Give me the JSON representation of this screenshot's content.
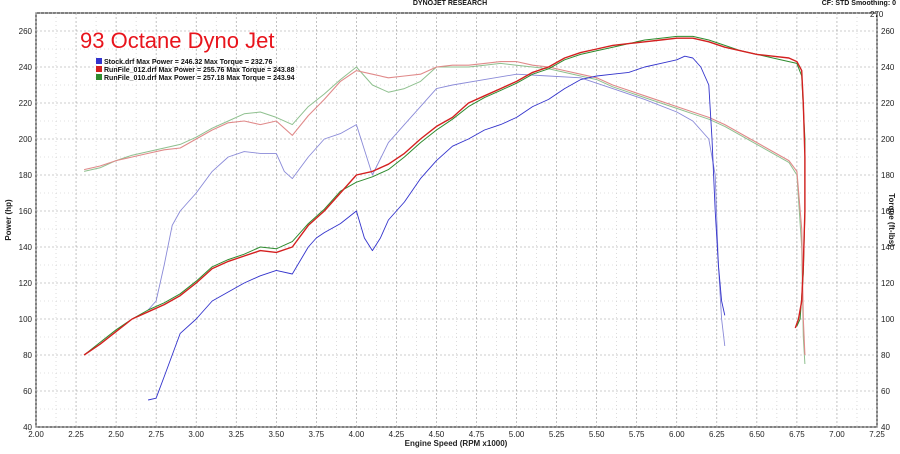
{
  "header": {
    "title": "DYNOJET RESEARCH",
    "right": "CF: STD   Smoothing: 0"
  },
  "overlay_title": "93 Octane Dyno Jet",
  "chart_data": {
    "type": "line",
    "xlabel": "Engine Speed (RPM x1000)",
    "ylabel_left": "Power (hp)",
    "ylabel_right": "Torque (ft-lbs)",
    "xlim": [
      2.0,
      7.25
    ],
    "ylim_left": [
      40,
      270
    ],
    "ylim_right": [
      40,
      270
    ],
    "x_ticks": [
      "2.00",
      "2.25",
      "2.50",
      "2.75",
      "3.00",
      "3.25",
      "3.50",
      "3.75",
      "4.00",
      "4.25",
      "4.50",
      "4.75",
      "5.00",
      "5.25",
      "5.50",
      "5.75",
      "6.00",
      "6.25",
      "6.50",
      "6.75",
      "7.00",
      "7.25"
    ],
    "y_ticks_left": [
      "40",
      "60",
      "80",
      "100",
      "120",
      "140",
      "160",
      "180",
      "200",
      "220",
      "240",
      "260"
    ],
    "y_ticks_right": [
      "40",
      "60",
      "80",
      "100",
      "120",
      "140",
      "160",
      "180",
      "200",
      "220",
      "240",
      "260"
    ],
    "y_ticks_top_right": "270",
    "grid": true,
    "legend_position": "top-left",
    "legend": [
      {
        "label": "Stock.drf Max Power = 246.32 Max Torque = 232.76",
        "color": "#3333cc"
      },
      {
        "label": "RunFile_012.drf Max Power = 255.76 Max Torque = 243.88",
        "color": "#d42020"
      },
      {
        "label": "RunFile_010.drf Max Power = 257.18 Max Torque = 243.94",
        "color": "#2e8b2e"
      }
    ],
    "series": [
      {
        "id": "stock_power",
        "kind": "power",
        "color": "#3333cc",
        "width": 0.9,
        "x": [
          2.7,
          2.75,
          2.8,
          2.85,
          2.9,
          3.0,
          3.1,
          3.2,
          3.3,
          3.4,
          3.5,
          3.6,
          3.7,
          3.75,
          3.8,
          3.9,
          4.0,
          4.05,
          4.1,
          4.15,
          4.2,
          4.3,
          4.4,
          4.5,
          4.6,
          4.7,
          4.8,
          4.9,
          5.0,
          5.1,
          5.2,
          5.3,
          5.4,
          5.5,
          5.6,
          5.7,
          5.8,
          5.9,
          6.0,
          6.05,
          6.1,
          6.15,
          6.2,
          6.22,
          6.24,
          6.26,
          6.28,
          6.3
        ],
        "y": [
          55,
          56,
          68,
          80,
          92,
          100,
          110,
          115,
          120,
          124,
          127,
          125,
          140,
          145,
          148,
          153,
          160,
          145,
          138,
          145,
          155,
          165,
          178,
          188,
          196,
          200,
          205,
          208,
          212,
          218,
          222,
          228,
          233,
          235,
          236,
          237,
          240,
          242,
          244,
          246,
          245,
          240,
          230,
          200,
          160,
          130,
          110,
          102
        ]
      },
      {
        "id": "stock_torque",
        "kind": "torque",
        "color": "#8a8ad8",
        "width": 0.9,
        "x": [
          2.7,
          2.75,
          2.8,
          2.85,
          2.9,
          3.0,
          3.1,
          3.2,
          3.3,
          3.4,
          3.5,
          3.55,
          3.6,
          3.7,
          3.8,
          3.9,
          4.0,
          4.05,
          4.1,
          4.2,
          4.3,
          4.4,
          4.5,
          4.6,
          4.8,
          5.0,
          5.2,
          5.4,
          5.6,
          5.8,
          6.0,
          6.1,
          6.15,
          6.2,
          6.24,
          6.26,
          6.28,
          6.3
        ],
        "y": [
          105,
          110,
          130,
          152,
          160,
          170,
          182,
          190,
          193,
          192,
          192,
          182,
          178,
          190,
          200,
          203,
          208,
          194,
          180,
          198,
          208,
          218,
          228,
          230,
          233,
          236,
          235,
          234,
          228,
          222,
          215,
          210,
          205,
          200,
          180,
          130,
          100,
          85
        ]
      },
      {
        "id": "run012_power",
        "kind": "power",
        "color": "#d42020",
        "width": 1.4,
        "x": [
          2.3,
          2.4,
          2.5,
          2.6,
          2.7,
          2.8,
          2.9,
          3.0,
          3.1,
          3.2,
          3.3,
          3.4,
          3.5,
          3.6,
          3.7,
          3.8,
          3.9,
          4.0,
          4.1,
          4.2,
          4.3,
          4.4,
          4.5,
          4.6,
          4.7,
          4.8,
          4.9,
          5.0,
          5.1,
          5.2,
          5.3,
          5.4,
          5.5,
          5.6,
          5.7,
          5.8,
          5.9,
          6.0,
          6.1,
          6.2,
          6.3,
          6.4,
          6.5,
          6.6,
          6.7,
          6.75,
          6.78,
          6.79,
          6.8,
          6.8,
          6.79,
          6.78,
          6.76,
          6.74
        ],
        "y": [
          80,
          86,
          93,
          100,
          104,
          108,
          113,
          120,
          128,
          132,
          135,
          138,
          137,
          140,
          152,
          160,
          170,
          180,
          182,
          186,
          192,
          200,
          207,
          212,
          220,
          224,
          228,
          232,
          237,
          240,
          245,
          248,
          250,
          252,
          253,
          254,
          255,
          256,
          256,
          254,
          251,
          249,
          247,
          246,
          245,
          243,
          238,
          220,
          190,
          160,
          130,
          110,
          100,
          95
        ]
      },
      {
        "id": "run012_torque",
        "kind": "torque",
        "color": "#e08a8a",
        "width": 1.1,
        "x": [
          2.3,
          2.4,
          2.5,
          2.6,
          2.7,
          2.8,
          2.9,
          3.0,
          3.1,
          3.2,
          3.3,
          3.4,
          3.5,
          3.6,
          3.7,
          3.8,
          3.9,
          4.0,
          4.1,
          4.2,
          4.3,
          4.4,
          4.5,
          4.6,
          4.7,
          4.8,
          4.9,
          5.0,
          5.1,
          5.2,
          5.3,
          5.4,
          5.5,
          5.6,
          5.7,
          5.8,
          5.9,
          6.0,
          6.1,
          6.2,
          6.3,
          6.4,
          6.5,
          6.6,
          6.7,
          6.75,
          6.78,
          6.79,
          6.8
        ],
        "y": [
          183,
          185,
          188,
          190,
          192,
          194,
          195,
          200,
          205,
          209,
          210,
          208,
          210,
          202,
          213,
          222,
          232,
          238,
          236,
          234,
          235,
          236,
          240,
          241,
          241,
          242,
          243,
          243,
          241,
          240,
          238,
          236,
          234,
          230,
          227,
          224,
          221,
          218,
          215,
          212,
          208,
          203,
          198,
          193,
          188,
          182,
          150,
          100,
          80
        ]
      },
      {
        "id": "run010_power",
        "kind": "power",
        "color": "#2e8b2e",
        "width": 1.0,
        "x": [
          2.3,
          2.4,
          2.5,
          2.6,
          2.7,
          2.8,
          2.9,
          3.0,
          3.1,
          3.2,
          3.3,
          3.4,
          3.5,
          3.6,
          3.7,
          3.8,
          3.9,
          4.0,
          4.1,
          4.2,
          4.3,
          4.4,
          4.5,
          4.6,
          4.7,
          4.8,
          4.9,
          5.0,
          5.1,
          5.2,
          5.3,
          5.4,
          5.5,
          5.6,
          5.7,
          5.8,
          5.9,
          6.0,
          6.1,
          6.2,
          6.3,
          6.4,
          6.5,
          6.6,
          6.7,
          6.75,
          6.78,
          6.8,
          6.8,
          6.79,
          6.77,
          6.75
        ],
        "y": [
          80,
          87,
          94,
          100,
          105,
          109,
          114,
          121,
          129,
          133,
          136,
          140,
          139,
          143,
          153,
          161,
          171,
          176,
          179,
          183,
          190,
          198,
          205,
          211,
          218,
          223,
          227,
          231,
          236,
          239,
          244,
          247,
          249,
          251,
          253,
          255,
          256,
          257,
          257,
          255,
          252,
          249,
          247,
          245,
          243,
          242,
          235,
          200,
          160,
          125,
          100,
          96
        ]
      },
      {
        "id": "run010_torque",
        "kind": "torque",
        "color": "#8fc08f",
        "width": 1.0,
        "x": [
          2.3,
          2.4,
          2.5,
          2.6,
          2.7,
          2.8,
          2.9,
          3.0,
          3.1,
          3.2,
          3.3,
          3.4,
          3.5,
          3.6,
          3.7,
          3.8,
          3.9,
          4.0,
          4.1,
          4.2,
          4.3,
          4.4,
          4.5,
          4.6,
          4.7,
          4.8,
          4.9,
          5.0,
          5.1,
          5.2,
          5.3,
          5.4,
          5.5,
          5.6,
          5.7,
          5.8,
          5.9,
          6.0,
          6.1,
          6.2,
          6.3,
          6.4,
          6.5,
          6.6,
          6.7,
          6.75,
          6.78,
          6.79,
          6.8
        ],
        "y": [
          182,
          184,
          188,
          191,
          193,
          195,
          197,
          201,
          206,
          210,
          214,
          215,
          212,
          208,
          218,
          225,
          233,
          240,
          230,
          226,
          228,
          232,
          240,
          240,
          240,
          241,
          242,
          241,
          240,
          239,
          237,
          235,
          233,
          229,
          226,
          223,
          220,
          217,
          214,
          211,
          207,
          202,
          197,
          192,
          187,
          180,
          140,
          90,
          75
        ]
      }
    ]
  }
}
